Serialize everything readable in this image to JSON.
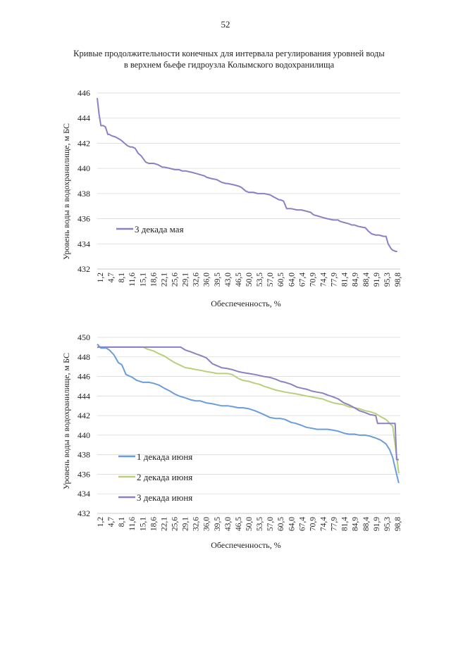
{
  "page": {
    "number": "52",
    "title_line1": "Кривые продолжительности конечных для интервала регулирования уровней воды",
    "title_line2": "в верхнем бьефе гидроузла Колымского водохранилища"
  },
  "colors": {
    "may3": "#8b80c4",
    "june1": "#6a9ddb",
    "june2": "#b7d07a",
    "june3": "#8b80c4",
    "grid": "#d9d9d9"
  },
  "chart_data": [
    {
      "type": "line",
      "id": "chart1",
      "title": "",
      "xlabel": "Обеспеченность, %",
      "ylabel": "Уровень воды в водохранилище, м БС",
      "xlim": [
        0,
        100
      ],
      "ylim": [
        432,
        446
      ],
      "yticks": [
        "446",
        "444",
        "442",
        "440",
        "438",
        "436",
        "434",
        "432"
      ],
      "xticks": [
        "1,2",
        "4,7",
        "8,1",
        "11,6",
        "15,1",
        "18,6",
        "22,1",
        "25,6",
        "29,1",
        "32,6",
        "36,0",
        "39,5",
        "43,0",
        "46,5",
        "50,0",
        "53,5",
        "57,0",
        "60,5",
        "64,0",
        "67,4",
        "70,9",
        "74,4",
        "77,9",
        "81,4",
        "84,9",
        "88,4",
        "91,9",
        "95,3",
        "98,8"
      ],
      "legend_position": "left",
      "series": [
        {
          "name": "3 декада мая",
          "color": "#8b80c4",
          "x": [
            0,
            0.6,
            1.2,
            2,
            2.7,
            3.5,
            4,
            4.7,
            6,
            7.5,
            8.1,
            9,
            10,
            11,
            11.6,
            12.5,
            13.5,
            14.5,
            15.1,
            16,
            17,
            18,
            18.6,
            20,
            21.5,
            22.1,
            24,
            25.6,
            27,
            28,
            29.1,
            31,
            32.6,
            34,
            35.5,
            36,
            37.5,
            39.5,
            41,
            42.5,
            43,
            45,
            46.5,
            47.5,
            49,
            50,
            51.5,
            53,
            53.5,
            55,
            57,
            58.5,
            60,
            60.5,
            61.5,
            62.5,
            63,
            64,
            66,
            67.4,
            69,
            70.5,
            70.9,
            71.5,
            73,
            74.4,
            76,
            77.9,
            79.5,
            80,
            81.4,
            83,
            84,
            84.9,
            86,
            88,
            88.4,
            89.5,
            90.5,
            91.9,
            93,
            94.5,
            95.3,
            96,
            96.5,
            97,
            97.5,
            98.5,
            99
          ],
          "values": [
            445.6,
            444.3,
            443.4,
            443.4,
            443.3,
            442.7,
            442.7,
            442.6,
            442.5,
            442.3,
            442.2,
            442.0,
            441.8,
            441.7,
            441.7,
            441.6,
            441.2,
            441.0,
            440.8,
            440.5,
            440.4,
            440.4,
            440.4,
            440.3,
            440.1,
            440.1,
            440.0,
            439.9,
            439.9,
            439.8,
            439.8,
            439.7,
            439.6,
            439.5,
            439.4,
            439.3,
            439.2,
            439.1,
            438.9,
            438.8,
            438.8,
            438.7,
            438.6,
            438.5,
            438.2,
            438.1,
            438.1,
            438.0,
            438.0,
            438.0,
            437.9,
            437.7,
            437.5,
            437.5,
            437.4,
            436.8,
            436.8,
            436.8,
            436.7,
            436.7,
            436.6,
            436.5,
            436.4,
            436.3,
            436.2,
            436.1,
            436.0,
            435.9,
            435.9,
            435.8,
            435.7,
            435.6,
            435.5,
            435.5,
            435.4,
            435.3,
            435.3,
            435.0,
            434.8,
            434.7,
            434.7,
            434.6,
            434.6,
            434.0,
            433.8,
            433.6,
            433.5,
            433.4,
            433.4
          ]
        }
      ]
    },
    {
      "type": "line",
      "id": "chart2",
      "title": "",
      "xlabel": "Обеспеченность, %",
      "ylabel": "Уровень воды в водохранилище, м БС",
      "xlim": [
        0,
        100
      ],
      "ylim": [
        432,
        450
      ],
      "yticks": [
        "450",
        "448",
        "446",
        "444",
        "442",
        "440",
        "438",
        "436",
        "434",
        "432"
      ],
      "xticks": [
        "1,2",
        "4,7",
        "8,1",
        "11,6",
        "15,1",
        "18,6",
        "22,1",
        "25,6",
        "29,1",
        "32,6",
        "36,0",
        "39,5",
        "43,0",
        "46,5",
        "50,0",
        "53,5",
        "57,0",
        "60,5",
        "64,0",
        "67,4",
        "70,9",
        "74,4",
        "77,9",
        "81,4",
        "84,9",
        "88,4",
        "91,9",
        "95,3",
        "98,8"
      ],
      "legend_position": "left",
      "series": [
        {
          "name": "1 декада июня",
          "color": "#6a9ddb",
          "x": [
            0,
            1.2,
            3,
            4,
            5.5,
            7,
            8.1,
            9.5,
            11.6,
            13,
            15.1,
            17,
            18.6,
            20.5,
            22.1,
            24,
            25.6,
            27,
            29.1,
            31,
            32.6,
            34,
            36,
            38,
            39.5,
            41,
            43,
            45,
            46.5,
            48,
            50,
            52,
            53.5,
            55,
            57,
            59,
            60.5,
            62,
            64,
            65.5,
            67.4,
            69,
            70.9,
            72.5,
            74.4,
            76,
            77.9,
            79.5,
            81.4,
            83,
            84.9,
            86.5,
            88.4,
            90,
            91.9,
            93.5,
            95.3,
            96.5,
            97.5,
            98.8,
            99.5
          ],
          "values": [
            449.3,
            448.9,
            448.9,
            448.7,
            448.2,
            447.4,
            447.2,
            446.2,
            445.9,
            445.6,
            445.4,
            445.4,
            445.3,
            445.1,
            444.8,
            444.5,
            444.2,
            444.0,
            443.8,
            443.6,
            443.5,
            443.5,
            443.3,
            443.2,
            443.1,
            443.0,
            443.0,
            442.9,
            442.8,
            442.8,
            442.7,
            442.5,
            442.3,
            442.1,
            441.8,
            441.7,
            441.7,
            441.6,
            441.3,
            441.2,
            441.0,
            440.8,
            440.7,
            440.6,
            440.6,
            440.6,
            440.5,
            440.4,
            440.2,
            440.1,
            440.1,
            440.0,
            440.0,
            439.9,
            439.7,
            439.5,
            439.1,
            438.5,
            437.7,
            436.0,
            435.1
          ]
        },
        {
          "name": "2 декада июня",
          "color": "#b7d07a",
          "x": [
            0,
            5,
            10,
            15.1,
            16.5,
            18.6,
            20.5,
            22.1,
            24,
            25.6,
            27,
            29.1,
            31,
            32.6,
            34.5,
            36,
            38,
            39.5,
            41,
            43,
            44.5,
            46.5,
            48,
            50,
            52,
            53.5,
            55,
            57,
            59,
            60.5,
            62,
            64,
            66,
            67.4,
            69,
            70.9,
            72.5,
            74.4,
            76,
            77.9,
            79.5,
            81.4,
            83,
            84.9,
            86.5,
            88.4,
            90,
            91.9,
            93.5,
            95.3,
            96.5,
            97.5,
            98.8,
            99.5
          ],
          "values": [
            449.0,
            449.0,
            449.0,
            449.0,
            448.8,
            448.6,
            448.3,
            448.1,
            447.7,
            447.4,
            447.2,
            446.9,
            446.8,
            446.7,
            446.6,
            446.5,
            446.4,
            446.3,
            446.3,
            446.3,
            446.2,
            445.8,
            445.6,
            445.5,
            445.3,
            445.2,
            445.0,
            444.8,
            444.6,
            444.5,
            444.4,
            444.3,
            444.2,
            444.1,
            444.0,
            443.9,
            443.8,
            443.7,
            443.5,
            443.3,
            443.2,
            443.1,
            442.9,
            442.8,
            442.7,
            442.5,
            442.4,
            442.2,
            441.9,
            441.6,
            441.2,
            440.9,
            437.9,
            436.1
          ]
        },
        {
          "name": "3 декада июня",
          "color": "#8b80c4",
          "x": [
            0,
            5,
            10,
            15,
            20,
            25.6,
            27.5,
            29.1,
            31,
            32.6,
            34.5,
            36,
            38,
            39.5,
            41,
            43,
            44.5,
            46.5,
            48,
            50,
            52,
            53.5,
            55,
            57,
            59,
            60.5,
            62,
            64,
            66,
            67.4,
            69,
            70.9,
            72.5,
            74.4,
            76,
            77.9,
            79.5,
            81.4,
            83,
            84.9,
            86.5,
            88.4,
            90,
            91.9,
            92.5,
            95.3,
            98.3,
            98.8,
            99.5
          ],
          "values": [
            449.0,
            449.0,
            449.0,
            449.0,
            449.0,
            449.0,
            449.0,
            448.7,
            448.5,
            448.3,
            448.1,
            447.9,
            447.3,
            447.1,
            446.9,
            446.8,
            446.7,
            446.5,
            446.4,
            446.3,
            446.2,
            446.1,
            446.0,
            445.9,
            445.7,
            445.5,
            445.4,
            445.2,
            444.9,
            444.8,
            444.7,
            444.5,
            444.4,
            444.3,
            444.1,
            443.9,
            443.7,
            443.3,
            443.1,
            442.8,
            442.5,
            442.3,
            442.1,
            442.0,
            441.2,
            441.2,
            441.2,
            437.5,
            437.5
          ]
        }
      ]
    }
  ]
}
